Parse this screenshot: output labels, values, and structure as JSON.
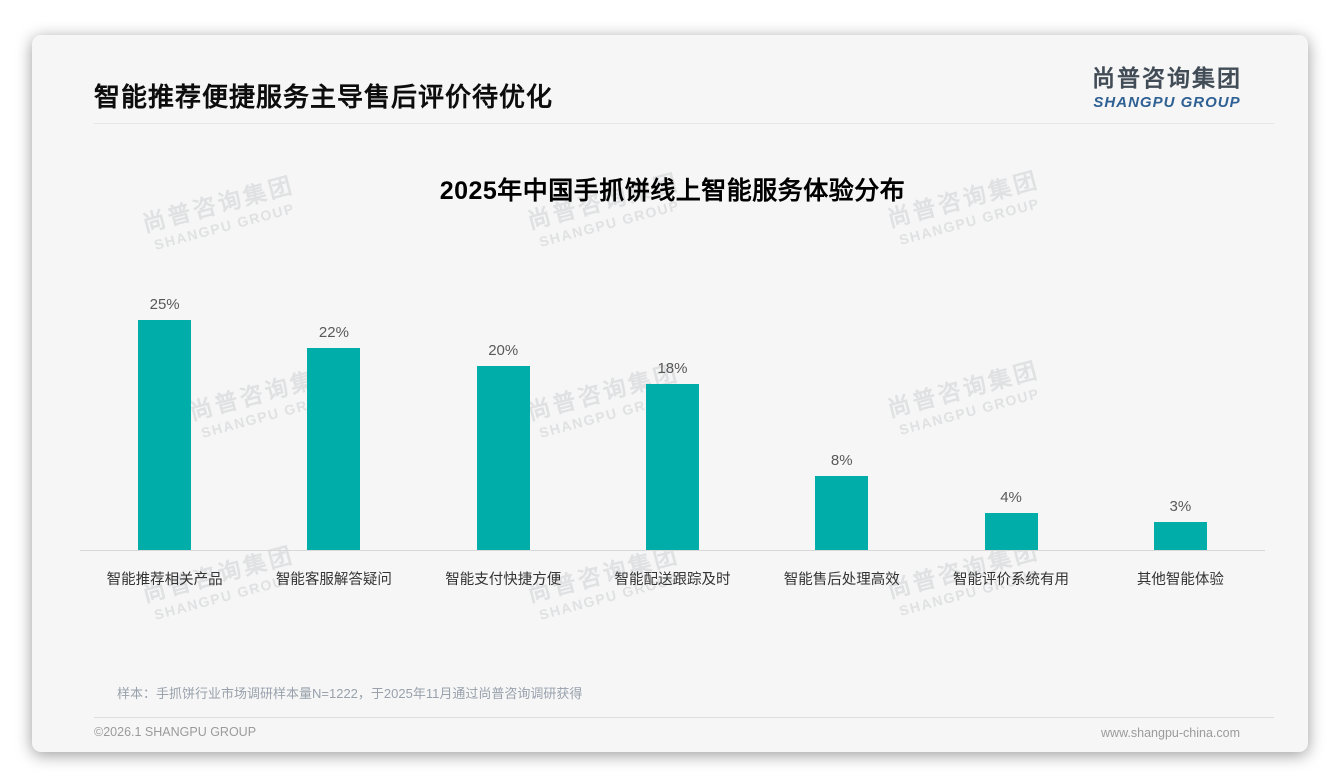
{
  "header": {
    "title": "智能推荐便捷服务主导售后评价待优化",
    "logo": {
      "cn": "尚普咨询集团",
      "en": "SHANGPU GROUP"
    }
  },
  "chart_data": {
    "type": "bar",
    "title": "2025年中国手抓饼线上智能服务体验分布",
    "categories": [
      "智能推荐相关产品",
      "智能客服解答疑问",
      "智能支付快捷方便",
      "智能配送跟踪及时",
      "智能售后处理高效",
      "智能评价系统有用",
      "其他智能体验"
    ],
    "values": [
      25,
      22,
      20,
      18,
      8,
      4,
      3
    ],
    "value_labels": [
      "25%",
      "22%",
      "20%",
      "18%",
      "8%",
      "4%",
      "3%"
    ],
    "ylabel": "",
    "xlabel": "",
    "ylim": [
      0,
      27
    ],
    "grid": false,
    "legend": "none",
    "bar_color": "#00ada8"
  },
  "note": {
    "text": "样本：手抓饼行业市场调研样本量N=1222，于2025年11月通过尚普咨询调研获得"
  },
  "footer": {
    "copyright": "©2026.1 SHANGPU GROUP",
    "website": "www.shangpu-china.com"
  },
  "watermark": {
    "cn": "尚普咨询集团",
    "en": "SHANGPU GROUP"
  },
  "colors": {
    "bar": "#00ada8",
    "accent_blue": "#2e6094",
    "card_bg": "#f6f6f6"
  }
}
